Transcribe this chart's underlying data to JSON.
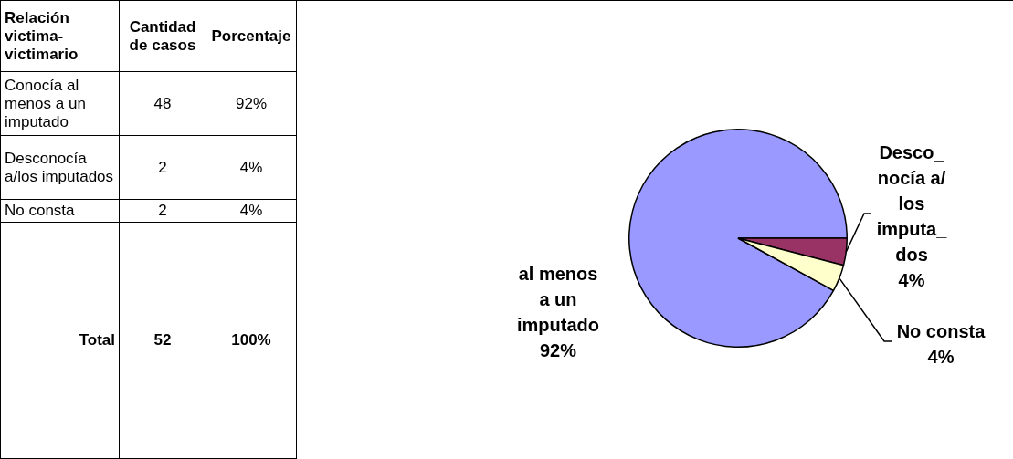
{
  "chart_data": [
    {
      "type": "other",
      "xlabel": "Relación victima-victimario",
      "categories": [
        "Conocía al menos a un imputado",
        "Desconocía a/los imputados",
        "No consta"
      ],
      "data_labels": true,
      "series": [
        {
          "name": "Cantidad de casos",
          "values": [
            48,
            2,
            2
          ]
        },
        {
          "name": "Porcentaje",
          "values": [
            92,
            4,
            4
          ],
          "value_labels": [
            "92%",
            "4%",
            "4%"
          ]
        }
      ],
      "annotations": [
        "Total"
      ],
      "totals": [
        "52",
        "100%"
      ]
    },
    {
      "type": "pie",
      "categories": [
        "al menos\na un\nimputado",
        "Desco_\nnocía a/\nlos\nimputa_\ndos",
        "No consta"
      ],
      "values": [
        92,
        4,
        4
      ],
      "value_labels": [
        "92%",
        "4%",
        "4%"
      ],
      "colors": [
        "#9999ff",
        "#993366",
        "#ffffcc"
      ],
      "legend": false
    }
  ]
}
